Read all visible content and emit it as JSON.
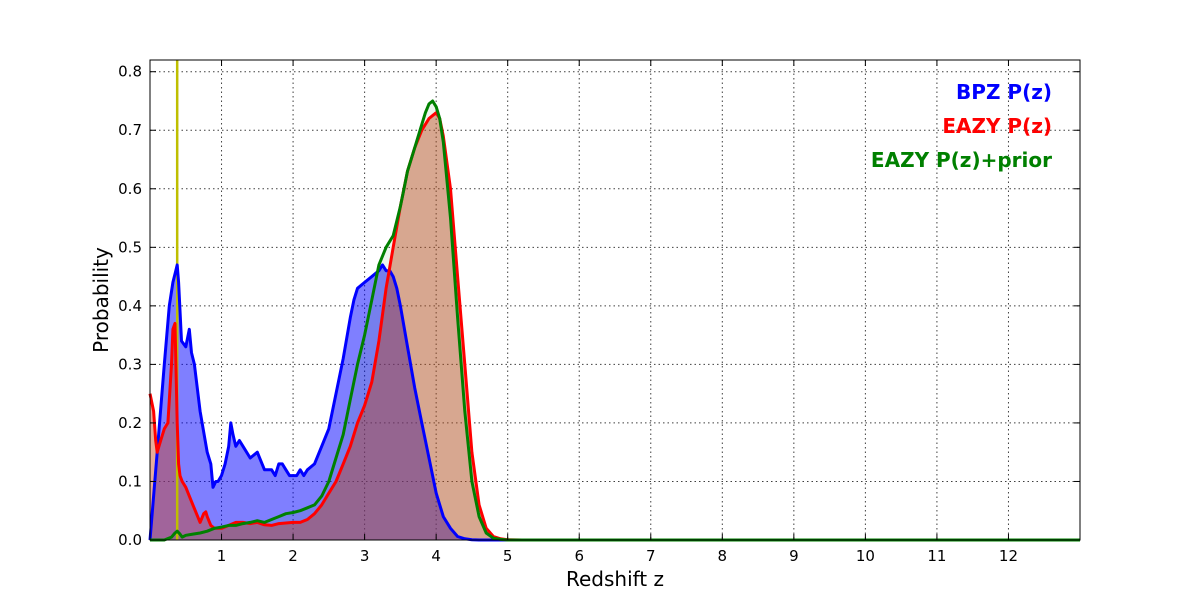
{
  "chart_data": {
    "type": "area",
    "xlabel": "Redshift z",
    "ylabel": "Probability",
    "xlim": [
      0,
      13
    ],
    "ylim": [
      0,
      0.82
    ],
    "xticks": [
      1,
      2,
      3,
      4,
      5,
      6,
      7,
      8,
      9,
      10,
      11,
      12
    ],
    "yticks": [
      0.0,
      0.1,
      0.2,
      0.3,
      0.4,
      0.5,
      0.6,
      0.7,
      0.8
    ],
    "ytick_labels": [
      "0.0",
      "0.1",
      "0.2",
      "0.3",
      "0.4",
      "0.5",
      "0.6",
      "0.7",
      "0.8"
    ],
    "grid": true,
    "legend_position": "top-right",
    "vertical_marker": {
      "x": 0.38,
      "color": "#bfbf00"
    },
    "series": [
      {
        "name": "BPZ P(z)",
        "color": "#0000ff",
        "fill": "#0000ff",
        "fill_opacity": 0.5,
        "x": [
          0,
          0.1,
          0.2,
          0.27,
          0.32,
          0.36,
          0.38,
          0.4,
          0.44,
          0.5,
          0.55,
          0.58,
          0.62,
          0.7,
          0.8,
          0.85,
          0.88,
          0.92,
          0.95,
          1.0,
          1.05,
          1.1,
          1.13,
          1.16,
          1.2,
          1.25,
          1.3,
          1.4,
          1.5,
          1.6,
          1.7,
          1.75,
          1.8,
          1.85,
          1.9,
          1.95,
          2.0,
          2.05,
          2.1,
          2.15,
          2.2,
          2.3,
          2.4,
          2.5,
          2.6,
          2.7,
          2.8,
          2.85,
          2.9,
          3.0,
          3.1,
          3.2,
          3.25,
          3.3,
          3.35,
          3.4,
          3.45,
          3.5,
          3.6,
          3.7,
          3.8,
          3.9,
          4.0,
          4.1,
          4.2,
          4.3,
          4.4,
          4.5,
          4.6,
          4.7,
          4.8,
          5.0,
          6.0,
          8.0,
          10.0,
          13.0
        ],
        "y": [
          0.0,
          0.15,
          0.3,
          0.4,
          0.44,
          0.46,
          0.47,
          0.44,
          0.34,
          0.33,
          0.36,
          0.32,
          0.3,
          0.22,
          0.15,
          0.13,
          0.09,
          0.1,
          0.1,
          0.11,
          0.13,
          0.16,
          0.2,
          0.18,
          0.16,
          0.17,
          0.16,
          0.14,
          0.15,
          0.12,
          0.12,
          0.11,
          0.13,
          0.13,
          0.12,
          0.11,
          0.11,
          0.11,
          0.12,
          0.11,
          0.12,
          0.13,
          0.16,
          0.19,
          0.25,
          0.31,
          0.38,
          0.41,
          0.43,
          0.44,
          0.45,
          0.46,
          0.47,
          0.46,
          0.46,
          0.45,
          0.43,
          0.4,
          0.33,
          0.26,
          0.2,
          0.14,
          0.08,
          0.04,
          0.02,
          0.006,
          0.002,
          0.0005,
          0.0,
          0.0,
          0.0,
          0.0,
          0.0,
          0.0,
          0.0,
          0.0
        ]
      },
      {
        "name": "EAZY P(z)",
        "color": "#ff0000",
        "fill": "#cc4422",
        "fill_opacity": 0.45,
        "x": [
          0,
          0.05,
          0.08,
          0.1,
          0.15,
          0.2,
          0.25,
          0.3,
          0.32,
          0.35,
          0.38,
          0.4,
          0.42,
          0.45,
          0.5,
          0.55,
          0.6,
          0.65,
          0.7,
          0.75,
          0.78,
          0.8,
          0.85,
          0.9,
          1.0,
          1.1,
          1.2,
          1.3,
          1.4,
          1.5,
          1.6,
          1.7,
          1.8,
          1.9,
          2.0,
          2.1,
          2.2,
          2.3,
          2.4,
          2.5,
          2.6,
          2.7,
          2.8,
          2.9,
          3.0,
          3.1,
          3.2,
          3.3,
          3.4,
          3.5,
          3.6,
          3.7,
          3.8,
          3.9,
          3.95,
          4.0,
          4.05,
          4.1,
          4.2,
          4.3,
          4.4,
          4.5,
          4.6,
          4.7,
          4.8,
          4.9,
          5.0,
          5.2,
          6.0,
          8.0,
          10.0,
          13.0
        ],
        "y": [
          0.25,
          0.22,
          0.17,
          0.15,
          0.17,
          0.19,
          0.2,
          0.3,
          0.36,
          0.37,
          0.2,
          0.13,
          0.11,
          0.1,
          0.09,
          0.075,
          0.06,
          0.045,
          0.03,
          0.045,
          0.048,
          0.04,
          0.025,
          0.02,
          0.02,
          0.025,
          0.03,
          0.03,
          0.028,
          0.03,
          0.026,
          0.025,
          0.028,
          0.029,
          0.03,
          0.03,
          0.035,
          0.045,
          0.06,
          0.08,
          0.1,
          0.13,
          0.16,
          0.2,
          0.23,
          0.27,
          0.34,
          0.43,
          0.5,
          0.57,
          0.63,
          0.67,
          0.7,
          0.72,
          0.725,
          0.73,
          0.72,
          0.69,
          0.6,
          0.45,
          0.3,
          0.15,
          0.06,
          0.02,
          0.006,
          0.002,
          0.0005,
          0.0,
          0.0,
          0.0,
          0.0,
          0.0
        ]
      },
      {
        "name": "EAZY P(z)+prior",
        "color": "#008000",
        "fill": "#008000",
        "fill_opacity": 0.07,
        "x": [
          0,
          0.2,
          0.3,
          0.35,
          0.38,
          0.42,
          0.45,
          0.5,
          0.6,
          0.7,
          0.8,
          0.9,
          1.0,
          1.1,
          1.2,
          1.3,
          1.4,
          1.5,
          1.6,
          1.7,
          1.8,
          1.9,
          2.0,
          2.1,
          2.2,
          2.3,
          2.4,
          2.5,
          2.6,
          2.7,
          2.8,
          2.9,
          3.0,
          3.1,
          3.2,
          3.3,
          3.4,
          3.5,
          3.55,
          3.6,
          3.7,
          3.8,
          3.85,
          3.9,
          3.95,
          4.0,
          4.05,
          4.1,
          4.2,
          4.3,
          4.4,
          4.5,
          4.6,
          4.7,
          4.8,
          4.9,
          5.0,
          5.2,
          6.0,
          8.0,
          10.0,
          13.0
        ],
        "y": [
          0.0,
          0.0,
          0.005,
          0.012,
          0.015,
          0.01,
          0.005,
          0.008,
          0.01,
          0.012,
          0.015,
          0.02,
          0.022,
          0.025,
          0.025,
          0.028,
          0.03,
          0.033,
          0.03,
          0.035,
          0.04,
          0.045,
          0.047,
          0.05,
          0.055,
          0.06,
          0.075,
          0.1,
          0.14,
          0.18,
          0.24,
          0.3,
          0.35,
          0.41,
          0.47,
          0.5,
          0.52,
          0.57,
          0.6,
          0.63,
          0.67,
          0.71,
          0.73,
          0.745,
          0.75,
          0.74,
          0.72,
          0.68,
          0.55,
          0.38,
          0.22,
          0.1,
          0.04,
          0.012,
          0.003,
          0.001,
          0.0,
          0.0,
          0.0,
          0.0,
          0.0,
          0.0
        ]
      }
    ]
  }
}
